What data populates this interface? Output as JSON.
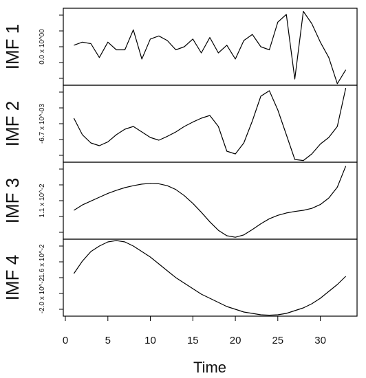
{
  "chart_data": {
    "type": "line",
    "xlabel": "Time",
    "xlim": [
      0,
      34
    ],
    "x_ticks": [
      0,
      5,
      10,
      15,
      20,
      25,
      30
    ],
    "x": [
      1,
      2,
      3,
      4,
      5,
      6,
      7,
      8,
      9,
      10,
      11,
      12,
      13,
      14,
      15,
      16,
      17,
      18,
      19,
      20,
      21,
      22,
      23,
      24,
      25,
      26,
      27,
      28,
      29,
      30,
      31,
      32,
      33
    ],
    "grid": false,
    "series": [
      {
        "name": "IMF 1",
        "tick_labels": [
          "0.0 x 10^00"
        ],
        "ylim": [
          -0.0026,
          0.0024
        ],
        "values": [
          0.0,
          0.0002,
          0.0001,
          -0.0008,
          0.0002,
          -0.0003,
          -0.0003,
          0.001,
          -0.0009,
          0.0004,
          0.0006,
          0.0003,
          -0.0003,
          -0.0001,
          0.0004,
          -0.0005,
          0.0005,
          -0.0005,
          0.0,
          -0.0009,
          0.0003,
          0.0007,
          -0.0001,
          -0.0003,
          0.0015,
          0.002,
          -0.0022,
          0.0022,
          0.0014,
          0.0002,
          -0.0008,
          -0.0025,
          -0.0016
        ]
      },
      {
        "name": "IMF 2",
        "tick_labels": [
          "-6.7 x 10^-03"
        ],
        "ylim": [
          -0.0095,
          0.0045
        ],
        "values": [
          -0.0015,
          -0.0045,
          -0.006,
          -0.0065,
          -0.0058,
          -0.0045,
          -0.0035,
          -0.003,
          -0.004,
          -0.005,
          -0.0055,
          -0.0048,
          -0.004,
          -0.003,
          -0.0022,
          -0.0015,
          -0.001,
          -0.003,
          -0.0075,
          -0.008,
          -0.006,
          -0.002,
          0.0025,
          0.0035,
          0.0,
          -0.0045,
          -0.009,
          -0.0092,
          -0.008,
          -0.0062,
          -0.005,
          -0.003,
          0.004
        ]
      },
      {
        "name": "IMF 3",
        "tick_labels": [
          "1.1 x 10^-2"
        ],
        "ylim": [
          0.0005,
          0.0205
        ],
        "values": [
          0.008,
          0.0094,
          0.0104,
          0.0114,
          0.0124,
          0.0132,
          0.0139,
          0.0144,
          0.0148,
          0.015,
          0.0149,
          0.0144,
          0.0134,
          0.0118,
          0.0098,
          0.0075,
          0.005,
          0.0028,
          0.0014,
          0.001,
          0.0016,
          0.003,
          0.0045,
          0.0058,
          0.0067,
          0.0073,
          0.0077,
          0.008,
          0.0085,
          0.0095,
          0.0112,
          0.014,
          0.0195
        ]
      },
      {
        "name": "IMF 4",
        "tick_labels": [
          "1.6 x 10^-2",
          "-2.0 x 10^-2"
        ],
        "ylim": [
          -0.03,
          0.026
        ],
        "values": [
          0.001,
          0.01,
          0.017,
          0.021,
          0.024,
          0.025,
          0.024,
          0.021,
          0.017,
          0.013,
          0.008,
          0.003,
          -0.002,
          -0.006,
          -0.01,
          -0.014,
          -0.017,
          -0.02,
          -0.023,
          -0.025,
          -0.027,
          -0.028,
          -0.029,
          -0.0293,
          -0.029,
          -0.028,
          -0.026,
          -0.024,
          -0.021,
          -0.017,
          -0.012,
          -0.007,
          -0.001
        ]
      }
    ]
  }
}
